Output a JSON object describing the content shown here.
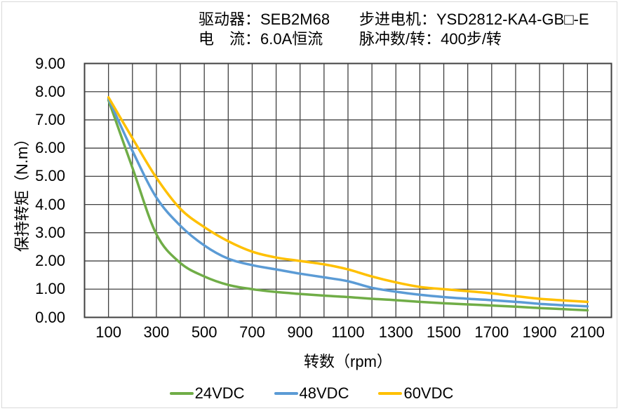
{
  "header": {
    "driver_label": "驱动器：SEB2M68",
    "motor_label": "步进电机：YSD2812-KA4-GB□-E",
    "current_label": "电　流：6.0A恒流",
    "pulses_label": "脉冲数/转：400步/转"
  },
  "chart_data": {
    "type": "line",
    "title": "",
    "xlabel": "转数（rpm）",
    "ylabel": "保持转矩（N.m）",
    "xlim": [
      0,
      2200
    ],
    "ylim": [
      0,
      9
    ],
    "x_grid_step": 100,
    "y_grid_step": 1,
    "grid": true,
    "legend_position": "bottom",
    "x_ticks": [
      100,
      300,
      500,
      700,
      900,
      1100,
      1300,
      1500,
      1700,
      1900,
      2100
    ],
    "y_tick_labels": [
      "9.00",
      "8.00",
      "7.00",
      "6.00",
      "5.00",
      "4.00",
      "3.00",
      "2.00",
      "1.00",
      "0.00"
    ],
    "x": [
      100,
      200,
      300,
      400,
      500,
      600,
      700,
      800,
      900,
      1000,
      1100,
      1200,
      1300,
      1400,
      1500,
      1600,
      1700,
      1800,
      1900,
      2000,
      2100
    ],
    "series": [
      {
        "name": "24VDC",
        "color": "#70AD47",
        "values": [
          7.7,
          5.3,
          2.95,
          1.93,
          1.45,
          1.15,
          1.0,
          0.9,
          0.83,
          0.77,
          0.72,
          0.66,
          0.61,
          0.55,
          0.5,
          0.46,
          0.42,
          0.38,
          0.33,
          0.29,
          0.25
        ]
      },
      {
        "name": "48VDC",
        "color": "#5B9BD5",
        "values": [
          7.75,
          5.9,
          4.25,
          3.25,
          2.55,
          2.08,
          1.85,
          1.7,
          1.55,
          1.42,
          1.28,
          1.05,
          0.91,
          0.8,
          0.72,
          0.66,
          0.61,
          0.55,
          0.48,
          0.43,
          0.39
        ]
      },
      {
        "name": "60VDC",
        "color": "#FFC000",
        "values": [
          7.8,
          6.35,
          4.95,
          3.85,
          3.2,
          2.7,
          2.33,
          2.12,
          2.0,
          1.88,
          1.7,
          1.45,
          1.24,
          1.08,
          1.0,
          0.93,
          0.85,
          0.75,
          0.66,
          0.6,
          0.55
        ]
      }
    ],
    "grid_color": "#404040",
    "frame_color": "#d9d9d9"
  }
}
